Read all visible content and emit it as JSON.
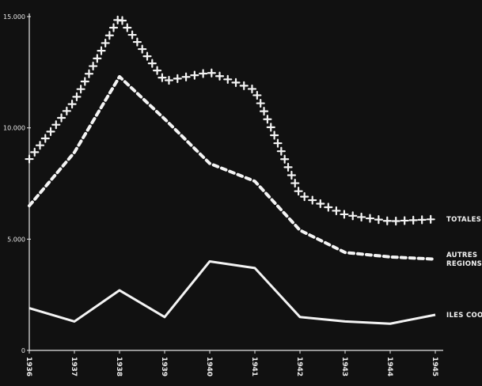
{
  "chart_data": {
    "type": "line",
    "x": [
      "1936",
      "1937",
      "1938",
      "1939",
      "1940",
      "1941",
      "1942",
      "1943",
      "1944",
      "1945"
    ],
    "x_tick_labels": [
      "1936",
      "1937",
      "1938",
      "1939",
      "1940",
      "1941",
      "1942",
      "1943",
      "1944",
      "1945"
    ],
    "ylim": [
      0,
      15000
    ],
    "y_ticks": [
      0,
      5000,
      10000,
      15000
    ],
    "y_tick_labels": [
      "0",
      "5.000",
      "10.000",
      "15.000"
    ],
    "grid": false,
    "legend": "inline labels at right end of each series",
    "series": [
      {
        "name": "TOTALES",
        "style": "crosses",
        "color": "#f4f4f4",
        "label_lines": [
          "TOTALES"
        ],
        "values": [
          8600,
          11200,
          15000,
          12100,
          12500,
          11700,
          7000,
          6100,
          5800,
          5900
        ]
      },
      {
        "name": "AUTRES REGIONS",
        "style": "dashed",
        "color": "#f4f4f4",
        "label_lines": [
          "AUTRES",
          "REGIONS"
        ],
        "values": [
          6500,
          8900,
          12300,
          10400,
          8400,
          7600,
          5400,
          4400,
          4200,
          4100
        ]
      },
      {
        "name": "ILES COOK",
        "style": "solid",
        "color": "#f4f4f4",
        "label_lines": [
          "ILES COOK"
        ],
        "values": [
          1900,
          1300,
          2700,
          1500,
          4000,
          3700,
          1500,
          1300,
          1200,
          1600
        ]
      }
    ]
  }
}
